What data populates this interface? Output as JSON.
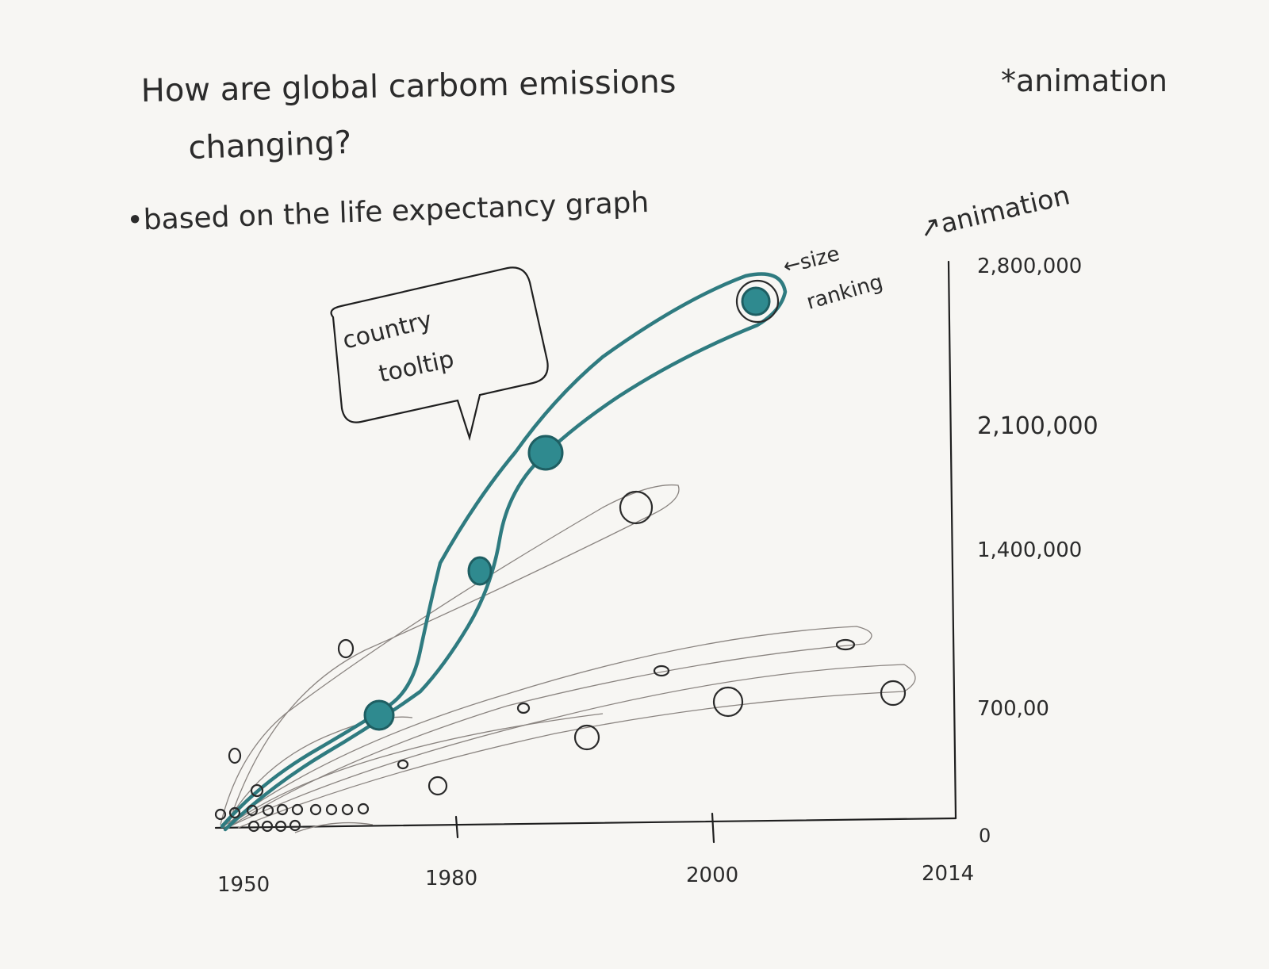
{
  "title_line1": "How are global carbom emissions",
  "title_line2": "changing?",
  "note_animation": "*animation",
  "note_based_on": "•based on the life expectancy graph",
  "note_animation2": "↗animation",
  "annotation_size": "←size",
  "annotation_ranking": "ranking",
  "tooltip_line1": "country",
  "tooltip_line2": "tooltip",
  "chart_data": {
    "type": "scatter",
    "x_ticks": [
      "1950",
      "1980",
      "2000",
      "2014"
    ],
    "y_ticks": [
      "0",
      "700,00",
      "1,400,000",
      "2,100,000",
      "2,800,000"
    ],
    "colors": {
      "highlight": "#2f8a8f",
      "ink": "#1f1f1f",
      "pencil": "#8a8480"
    }
  }
}
